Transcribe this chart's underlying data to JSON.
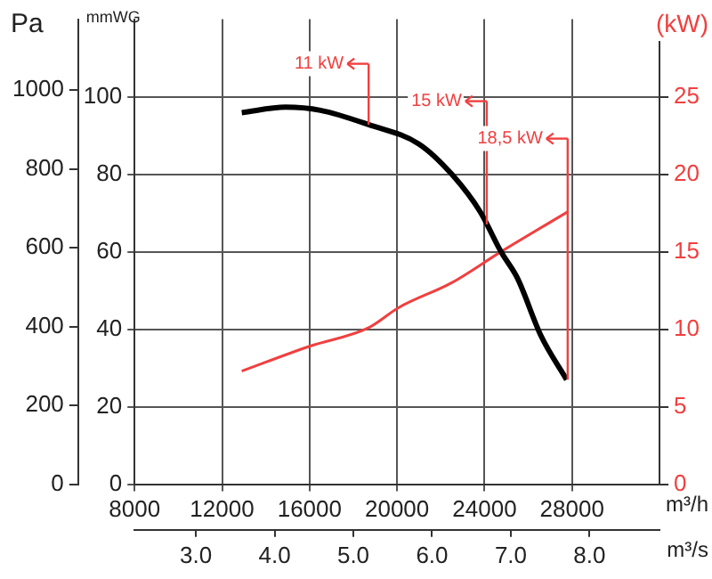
{
  "chart_data": {
    "type": "line",
    "xlabel": "m³/h",
    "x2label": "m³/s",
    "ylabel": "mmWG",
    "y2label": "(kW)",
    "y3label": "Pa",
    "xlim": [
      8000,
      32000
    ],
    "xticks": [
      8000,
      12000,
      16000,
      20000,
      24000,
      28000
    ],
    "x2lim": [
      2.222,
      8.889
    ],
    "x2ticks": [
      {
        "value": 3,
        "label": "3.0"
      },
      {
        "value": 4,
        "label": "4.0"
      },
      {
        "value": 5,
        "label": "5.0"
      },
      {
        "value": 6,
        "label": "6.0"
      },
      {
        "value": 7,
        "label": "7.0"
      },
      {
        "value": 8,
        "label": "8.0"
      }
    ],
    "ylim": [
      0,
      120
    ],
    "yticks": [
      0,
      20,
      40,
      60,
      80,
      100
    ],
    "y2lim": [
      0,
      30
    ],
    "y2ticks": [
      0,
      5,
      10,
      15,
      20,
      25
    ],
    "y3lim": [
      0,
      1180
    ],
    "y3ticks": [
      0,
      200,
      400,
      600,
      800,
      1000
    ],
    "grid": true,
    "legend": false,
    "marker": "none",
    "line_style": "solid",
    "series": [
      {
        "color": "#000000",
        "x": [
          12900,
          14900,
          16500,
          18700,
          21000,
          22500,
          23800,
          24750,
          25500,
          26580,
          27750
        ],
        "values": [
          95.9,
          97.3,
          96.5,
          92.8,
          87.8,
          80,
          70.3,
          60,
          53.2,
          38.3,
          27
        ]
      },
      {
        "color": "#f04040",
        "axis": "y2",
        "x": [
          12900,
          16000,
          18700,
          20080,
          22500,
          24750,
          27830
        ],
        "values": [
          7.3,
          8.9,
          10.1,
          11.4,
          13,
          15,
          17.6
        ]
      }
    ],
    "ref_lines": [
      {
        "axis": "x",
        "value": 18700,
        "label": "11 kW",
        "color": "#f04040"
      },
      {
        "axis": "x",
        "value": 24100,
        "label": "15 kW",
        "color": "#f04040"
      },
      {
        "axis": "x",
        "value": 27800,
        "label": "18,5 kW",
        "color": "#f04040"
      }
    ]
  }
}
